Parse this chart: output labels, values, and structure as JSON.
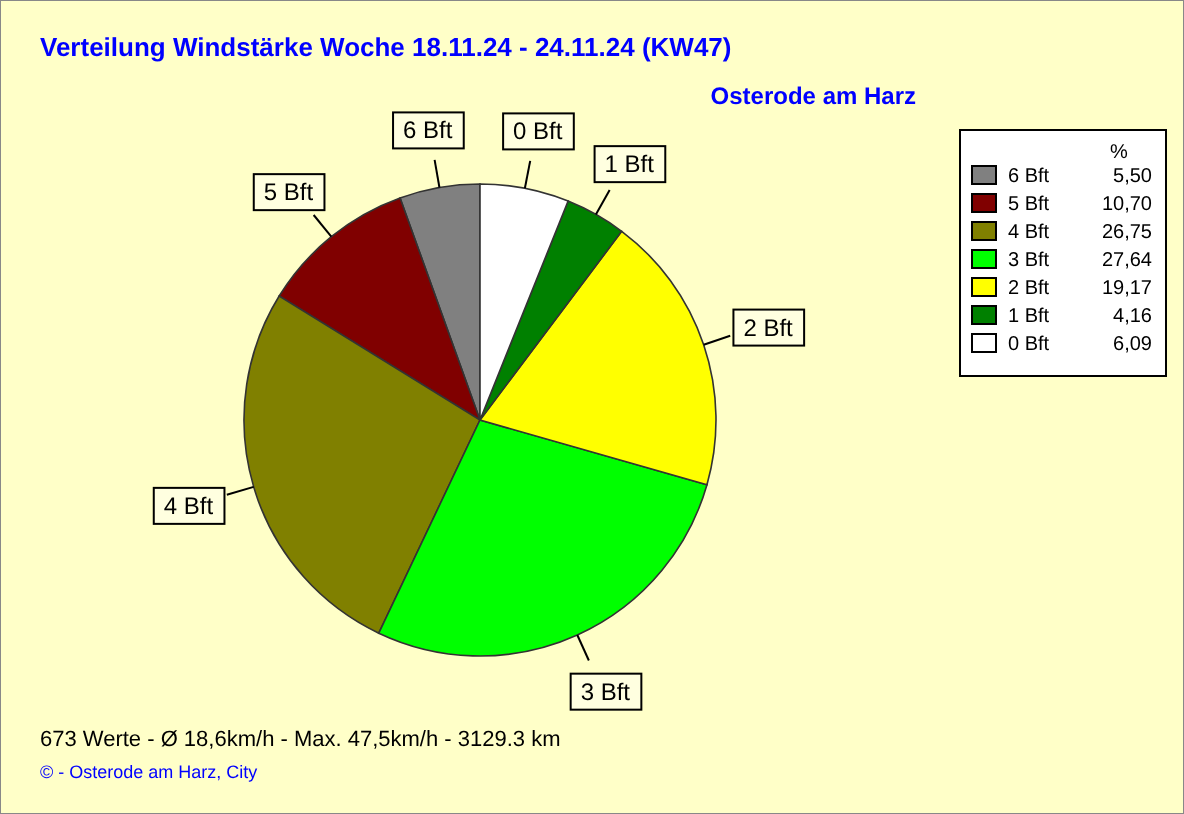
{
  "chart_data": {
    "type": "pie",
    "title": "Verteilung Windstärke  Woche 18.11.24 - 24.11.24 (KW47)",
    "subtitle": "Osterode am Harz",
    "categories": [
      "6 Bft",
      "5 Bft",
      "4 Bft",
      "3 Bft",
      "2 Bft",
      "1 Bft",
      "0 Bft"
    ],
    "values": [
      5.5,
      10.7,
      26.75,
      27.64,
      19.17,
      4.16,
      6.09
    ],
    "value_labels": [
      "5,50",
      "10,70",
      "26,75",
      "27,64",
      "19,17",
      "4,16",
      "6,09"
    ],
    "colors": [
      "#808080",
      "#800000",
      "#808000",
      "#00ff00",
      "#ffff00",
      "#008000",
      "#ffffff"
    ],
    "legend_title": "%",
    "legend": "top right",
    "annotations": [
      "673 Werte   -   Ø 18,6km/h   -   Max. 47,5km/h   -   3129.3 km",
      "©  -  Osterode am Harz, City"
    ]
  }
}
